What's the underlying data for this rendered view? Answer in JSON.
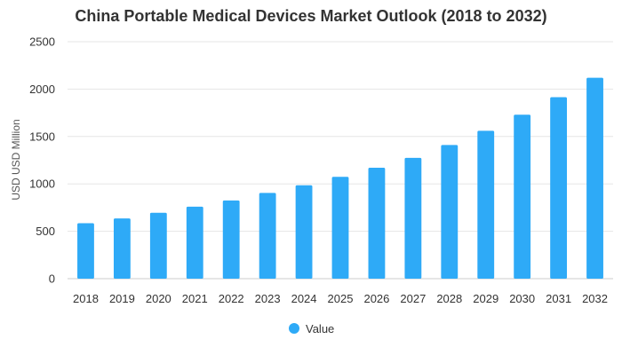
{
  "chart_data": {
    "type": "bar",
    "title": "China Portable Medical Devices Market Outlook (2018 to 2032)",
    "xlabel": "",
    "ylabel": "USD USD Million",
    "ylim": [
      0,
      2500
    ],
    "yticks": [
      0,
      500,
      1000,
      1500,
      2000,
      2500
    ],
    "grid": true,
    "legend_position": "bottom-center",
    "categories": [
      "2018",
      "2019",
      "2020",
      "2021",
      "2022",
      "2023",
      "2024",
      "2025",
      "2026",
      "2027",
      "2028",
      "2029",
      "2030",
      "2031",
      "2032"
    ],
    "series": [
      {
        "name": "Value",
        "color": "#2eaaf7",
        "values": [
          585,
          635,
          695,
          760,
          825,
          905,
          985,
          1075,
          1170,
          1275,
          1410,
          1560,
          1730,
          1915,
          2120
        ]
      }
    ]
  }
}
